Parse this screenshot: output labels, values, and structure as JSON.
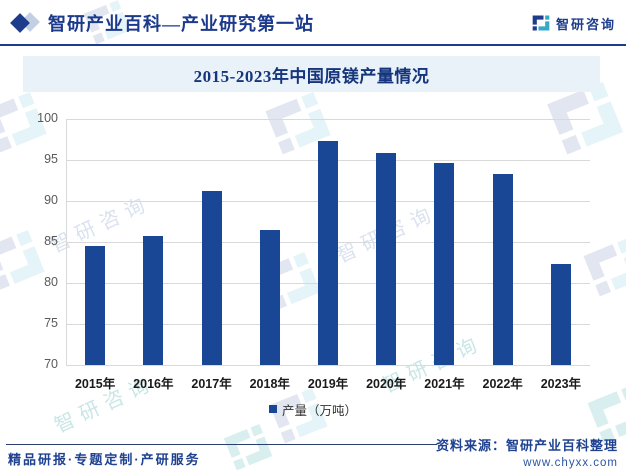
{
  "header": {
    "title": "智研产业百科—产业研究第一站",
    "brand": "智研咨询"
  },
  "chart_data": {
    "type": "bar",
    "title": "2015-2023年中国原镁产量情况",
    "categories": [
      "2015年",
      "2016年",
      "2017年",
      "2018年",
      "2019年",
      "2020年",
      "2021年",
      "2022年",
      "2023年"
    ],
    "values": [
      84.5,
      85.7,
      91.2,
      86.5,
      97.3,
      95.8,
      94.6,
      93.3,
      82.3
    ],
    "series_name": "产量（万吨）",
    "xlabel": "",
    "ylabel": "",
    "ylim": [
      70,
      100
    ],
    "ytick_step": 5,
    "grid": true,
    "legend_position": "bottom"
  },
  "legend": {
    "label": "产量（万吨）"
  },
  "footer": {
    "services": "精品研报·专题定制·产研服务",
    "source": "资料来源：智研产业百科整理",
    "website": "www.chyxx.com"
  },
  "watermark": {
    "text": "智研咨询"
  },
  "colors": {
    "bar": "#1a4696",
    "accent": "#1e3c8c",
    "banner_bg": "#e9f1f9",
    "teal": "#35a9a9"
  }
}
